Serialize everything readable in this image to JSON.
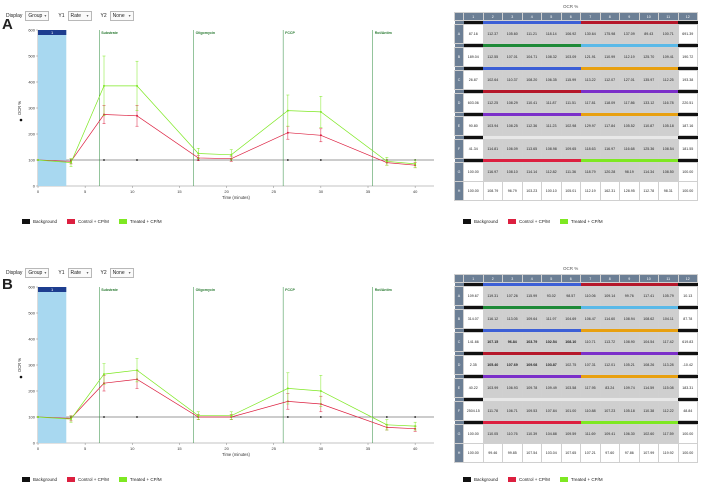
{
  "panels": [
    {
      "letter": "A",
      "toolbar": {
        "display_label": "Display",
        "display_value": "Group",
        "y1_label": "Y1",
        "y1_value": "Rate",
        "y2_label": "Y2",
        "y2_value": "None"
      },
      "ylabel": "OCR %",
      "xlabel": "Time (minutes)",
      "injections": [
        "Substrate",
        "Oligomycin",
        "FCCP",
        "Rot/Antim"
      ],
      "injection_x": [
        6.5,
        16.5,
        26,
        35.5
      ],
      "marker": "1",
      "yticks": [
        "0",
        "100",
        "200",
        "300",
        "400",
        "500",
        "600"
      ],
      "xticks": [
        "0",
        "5",
        "10",
        "15",
        "20",
        "25",
        "30",
        "35",
        "40"
      ],
      "legend": [
        "Background",
        "Control + CP/M",
        "Treated + CP/M"
      ],
      "colors": {
        "background": "#111111",
        "control": "#dc1f3f",
        "treated": "#7ee822"
      },
      "chart_data": {
        "type": "line",
        "xlabel": "Time (minutes)",
        "ylabel": "OCR %",
        "xlim": [
          0,
          42
        ],
        "ylim": [
          0,
          600
        ],
        "x": [
          0,
          3.5,
          7,
          10.5,
          17,
          20.5,
          26.5,
          30,
          37,
          40
        ],
        "series": [
          {
            "name": "Background",
            "values": [
              100,
              100,
              100,
              100,
              100,
              100,
              100,
              100,
              100,
              100
            ]
          },
          {
            "name": "Control + CP/M",
            "values": [
              100,
              95,
              275,
              270,
              108,
              105,
              205,
              195,
              90,
              80
            ],
            "err": [
              0,
              10,
              35,
              40,
              10,
              10,
              25,
              25,
              10,
              10
            ]
          },
          {
            "name": "Treated + CP/M",
            "values": [
              100,
              90,
              385,
              385,
              125,
              120,
              290,
              285,
              95,
              85
            ],
            "err": [
              0,
              15,
              115,
              95,
              20,
              20,
              60,
              60,
              15,
              15
            ]
          }
        ]
      },
      "plate": {
        "title": "OCR %",
        "cols": [
          "1",
          "2",
          "3",
          "4",
          "5",
          "6",
          "7",
          "8",
          "9",
          "10",
          "11",
          "12"
        ],
        "rows": [
          {
            "label": "A",
            "bar": [
              "#111111",
              "#3c5fd6",
              "#3c5fd6",
              "#3c5fd6",
              "#3c5fd6",
              "#3c5fd6",
              "#b5172a",
              "#b5172a",
              "#b5172a",
              "#b5172a",
              "#b5172a",
              "#111111"
            ],
            "vals": [
              "87.16",
              "112.37",
              "105.60",
              "111.21",
              "118.14",
              "106.92",
              "130.64",
              "175.98",
              "137.09",
              "89.43",
              "100.71",
              "691.39"
            ],
            "bold": []
          },
          {
            "label": "B",
            "bar": [
              "#111111",
              "#1e8a38",
              "#1e8a38",
              "#1e8a38",
              "#1e8a38",
              "#1e8a38",
              "#5ab9e8",
              "#5ab9e8",
              "#5ab9e8",
              "#5ab9e8",
              "#5ab9e8",
              "#111111"
            ],
            "vals": [
              "189.04",
              "112.55",
              "107.01",
              "104.71",
              "108.32",
              "103.09",
              "121.91",
              "110.99",
              "112.19",
              "125.70",
              "109.41",
              "190.72"
            ],
            "bold": []
          },
          {
            "label": "C",
            "bar": [
              "#111111",
              "#3c5fd6",
              "#3c5fd6",
              "#3c5fd6",
              "#3c5fd6",
              "#3c5fd6",
              "#e8a010",
              "#e8a010",
              "#e8a010",
              "#e8a010",
              "#e8a010",
              "#111111"
            ],
            "vals": [
              "26.87",
              "102.64",
              "110.37",
              "108.20",
              "106.35",
              "115.99",
              "113.22",
              "112.07",
              "127.01",
              "135.97",
              "112.25",
              "193.38"
            ],
            "bold": []
          },
          {
            "label": "D",
            "bar": [
              "#111111",
              "#b5172a",
              "#b5172a",
              "#b5172a",
              "#b5172a",
              "#b5172a",
              "#7b2fc9",
              "#7b2fc9",
              "#7b2fc9",
              "#7b2fc9",
              "#7b2fc9",
              "#111111"
            ],
            "vals": [
              "603.06",
              "112.25",
              "108.29",
              "110.41",
              "111.87",
              "111.51",
              "117.81",
              "118.09",
              "117.86",
              "133.12",
              "116.78",
              "220.51"
            ],
            "bold": []
          },
          {
            "label": "E",
            "bar": [
              "#111111",
              "#7b2fc9",
              "#7b2fc9",
              "#7b2fc9",
              "#7b2fc9",
              "#7b2fc9",
              "#e8a010",
              "#e8a010",
              "#e8a010",
              "#e8a010",
              "#e8a010",
              "#111111"
            ],
            "vals": [
              "90.80",
              "103.94",
              "108.25",
              "112.36",
              "111.23",
              "102.98",
              "129.97",
              "117.84",
              "105.52",
              "110.87",
              "105.18",
              "187.16"
            ],
            "bold": []
          },
          {
            "label": "F",
            "bar": [
              "#111111",
              "#e8e8e8",
              "#e8e8e8",
              "#e8e8e8",
              "#e8e8e8",
              "#e8e8e8",
              "#e8e8e8",
              "#e8e8e8",
              "#e8e8e8",
              "#e8e8e8",
              "#e8e8e8",
              "#111111"
            ],
            "vals": [
              "41.34",
              "114.81",
              "106.09",
              "113.65",
              "108.98",
              "109.65",
              "118.63",
              "116.97",
              "116.68",
              "125.36",
              "108.54",
              "181.55"
            ],
            "bold": []
          },
          {
            "label": "G",
            "bar": [
              "#111111",
              "#dc1f3f",
              "#dc1f3f",
              "#dc1f3f",
              "#dc1f3f",
              "#dc1f3f",
              "#7ee822",
              "#7ee822",
              "#7ee822",
              "#7ee822",
              "#7ee822",
              "#111111"
            ],
            "vals": [
              "100.00",
              "116.97",
              "108.10",
              "114.14",
              "112.82",
              "111.36",
              "118.79",
              "120.28",
              "98.19",
              "114.34",
              "108.50",
              "100.00"
            ],
            "bold": []
          },
          {
            "label": "H",
            "bar": [],
            "vals": [
              "100.00",
              "108.79",
              "96.79",
              "103.23",
              "100.10",
              "105.01",
              "112.19",
              "162.31",
              "128.95",
              "112.78",
              "98.31",
              "100.00"
            ],
            "bold": []
          }
        ]
      },
      "plate_legend": [
        "Background",
        "Control + CP/M",
        "Treated + CP/M"
      ]
    },
    {
      "letter": "B",
      "toolbar": {
        "display_label": "Display",
        "display_value": "Group",
        "y1_label": "Y1",
        "y1_value": "Rate",
        "y2_label": "Y2",
        "y2_value": "None"
      },
      "ylabel": "OCR %",
      "xlabel": "Time (minutes)",
      "injections": [
        "Substrate",
        "Oligomycin",
        "FCCP",
        "Rot/Antim"
      ],
      "injection_x": [
        6.5,
        16.5,
        26,
        35.5
      ],
      "marker": "1",
      "yticks": [
        "0",
        "100",
        "200",
        "300",
        "400",
        "500",
        "600"
      ],
      "xticks": [
        "0",
        "5",
        "10",
        "15",
        "20",
        "25",
        "30",
        "35",
        "40"
      ],
      "legend": [
        "Background",
        "Control + CP/M",
        "Treated + CP/M"
      ],
      "colors": {
        "background": "#111111",
        "control": "#dc1f3f",
        "treated": "#7ee822"
      },
      "chart_data": {
        "type": "line",
        "xlabel": "Time (minutes)",
        "ylabel": "OCR %",
        "xlim": [
          0,
          42
        ],
        "ylim": [
          0,
          600
        ],
        "x": [
          0,
          3.5,
          7,
          10.5,
          17,
          20.5,
          26.5,
          30,
          37,
          40
        ],
        "series": [
          {
            "name": "Background",
            "values": [
              100,
              100,
              100,
              100,
              100,
              100,
              100,
              100,
              100,
              100
            ]
          },
          {
            "name": "Control + CP/M",
            "values": [
              100,
              95,
              230,
              245,
              100,
              100,
              160,
              150,
              60,
              55
            ],
            "err": [
              0,
              10,
              30,
              35,
              10,
              10,
              30,
              30,
              10,
              10
            ]
          },
          {
            "name": "Treated + CP/M",
            "values": [
              100,
              92,
              265,
              280,
              105,
              105,
              210,
              200,
              70,
              65
            ],
            "err": [
              0,
              12,
              40,
              45,
              15,
              15,
              60,
              60,
              20,
              15
            ]
          }
        ]
      },
      "plate": {
        "title": "OCR %",
        "cols": [
          "1",
          "2",
          "3",
          "4",
          "5",
          "6",
          "7",
          "8",
          "9",
          "10",
          "11",
          "12"
        ],
        "rows": [
          {
            "label": "A",
            "bar": [
              "#111111",
              "#3c5fd6",
              "#3c5fd6",
              "#3c5fd6",
              "#3c5fd6",
              "#3c5fd6",
              "#b5172a",
              "#b5172a",
              "#b5172a",
              "#b5172a",
              "#b5172a",
              "#111111"
            ],
            "vals": [
              "109.67",
              "119.31",
              "107.26",
              "115.99",
              "93.02",
              "98.57",
              "110.06",
              "109.14",
              "99.76",
              "117.41",
              "105.79",
              "10.13"
            ],
            "bold": []
          },
          {
            "label": "B",
            "bar": [
              "#111111",
              "#1e8a38",
              "#1e8a38",
              "#1e8a38",
              "#1e8a38",
              "#1e8a38",
              "#5ab9e8",
              "#5ab9e8",
              "#5ab9e8",
              "#5ab9e8",
              "#5ab9e8",
              "#111111"
            ],
            "vals": [
              "314.07",
              "116.12",
              "113.05",
              "109.64",
              "111.97",
              "104.69",
              "106.47",
              "114.60",
              "108.94",
              "108.62",
              "104.11",
              "87.78"
            ],
            "bold": []
          },
          {
            "label": "C",
            "bar": [
              "#111111",
              "#3c5fd6",
              "#3c5fd6",
              "#3c5fd6",
              "#3c5fd6",
              "#3c5fd6",
              "#e8a010",
              "#e8a010",
              "#e8a010",
              "#e8a010",
              "#e8a010",
              "#111111"
            ],
            "vals": [
              "141.66",
              "107.15",
              "96.84",
              "103.79",
              "102.54",
              "108.10",
              "110.71",
              "113.72",
              "108.90",
              "104.54",
              "117.42",
              "619.83"
            ],
            "bold": [
              1,
              2,
              3,
              4,
              5
            ]
          },
          {
            "label": "D",
            "bar": [
              "#111111",
              "#b5172a",
              "#b5172a",
              "#b5172a",
              "#b5172a",
              "#b5172a",
              "#7b2fc9",
              "#7b2fc9",
              "#7b2fc9",
              "#7b2fc9",
              "#7b2fc9",
              "#111111"
            ],
            "vals": [
              "2.35",
              "105.40",
              "107.69",
              "109.08",
              "103.87",
              "102.75",
              "107.31",
              "112.01",
              "105.21",
              "108.26",
              "113.28",
              "-10.42"
            ],
            "bold": [
              1,
              2,
              3,
              4
            ]
          },
          {
            "label": "E",
            "bar": [
              "#111111",
              "#7b2fc9",
              "#7b2fc9",
              "#7b2fc9",
              "#7b2fc9",
              "#7b2fc9",
              "#e8a010",
              "#e8a010",
              "#e8a010",
              "#e8a010",
              "#e8a010",
              "#111111"
            ],
            "vals": [
              "40.22",
              "103.99",
              "106.93",
              "109.78",
              "109.49",
              "103.58",
              "117.95",
              "83.24",
              "109.74",
              "114.59",
              "115.08",
              "183.31"
            ],
            "bold": []
          },
          {
            "label": "F",
            "bar": [
              "#111111",
              "#e8e8e8",
              "#e8e8e8",
              "#e8e8e8",
              "#e8e8e8",
              "#e8e8e8",
              "#e8e8e8",
              "#e8e8e8",
              "#e8e8e8",
              "#e8e8e8",
              "#e8e8e8",
              "#111111"
            ],
            "vals": [
              "2504.15",
              "111.78",
              "106.71",
              "109.53",
              "107.84",
              "101.00",
              "110.88",
              "107.23",
              "105.18",
              "110.38",
              "112.22",
              "48.84"
            ],
            "bold": []
          },
          {
            "label": "G",
            "bar": [
              "#111111",
              "#dc1f3f",
              "#dc1f3f",
              "#dc1f3f",
              "#dc1f3f",
              "#dc1f3f",
              "#7ee822",
              "#7ee822",
              "#7ee822",
              "#7ee822",
              "#7ee822",
              "#111111"
            ],
            "vals": [
              "100.00",
              "110.05",
              "110.76",
              "110.39",
              "104.88",
              "109.59",
              "111.69",
              "109.41",
              "106.30",
              "102.60",
              "117.59",
              "100.00"
            ],
            "bold": []
          },
          {
            "label": "H",
            "bar": [],
            "vals": [
              "100.00",
              "99.46",
              "99.85",
              "107.54",
              "103.04",
              "107.65",
              "107.21",
              "97.60",
              "97.86",
              "107.99",
              "119.92",
              "100.00"
            ],
            "bold": []
          }
        ]
      },
      "plate_legend": [
        "Background",
        "Control + CP/M",
        "Treated + CP/M"
      ]
    }
  ]
}
